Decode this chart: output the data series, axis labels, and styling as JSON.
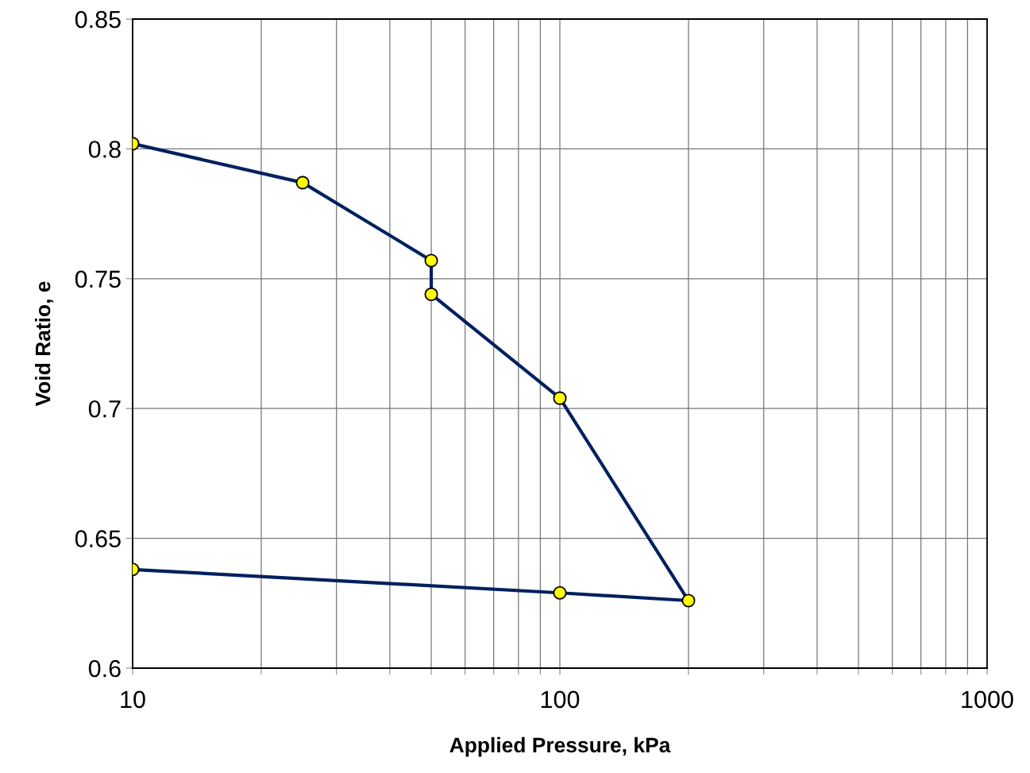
{
  "chart_data": {
    "type": "line",
    "xlabel": "Applied Pressure, kPa",
    "ylabel": "Void Ratio, e",
    "log": "x",
    "series": [
      {
        "color": "#002060",
        "x": [
          10,
          25,
          50,
          50,
          100,
          200,
          100,
          10
        ],
        "values": [
          0.802,
          0.787,
          0.757,
          0.744,
          0.704,
          0.626,
          0.629,
          0.638
        ]
      }
    ],
    "marker": "circle",
    "line_style": "solid",
    "grid": true,
    "xlim": [
      10,
      1000
    ],
    "ylim": [
      0.6,
      0.85
    ],
    "xticks": [
      10,
      {
        "value": 20,
        "label": null
      },
      {
        "value": 30,
        "label": null
      },
      {
        "value": 40,
        "label": null
      },
      {
        "value": 50,
        "label": null
      },
      {
        "value": 60,
        "label": null
      },
      {
        "value": 70,
        "label": null
      },
      {
        "value": 80,
        "label": null
      },
      {
        "value": 90,
        "label": null
      },
      100,
      {
        "value": 200,
        "label": null
      },
      {
        "value": 300,
        "label": null
      },
      {
        "value": 400,
        "label": null
      },
      {
        "value": 500,
        "label": null
      },
      {
        "value": 600,
        "label": null
      },
      {
        "value": 700,
        "label": null
      },
      {
        "value": 800,
        "label": null
      },
      {
        "value": 900,
        "label": null
      },
      1000
    ],
    "yticks": [
      0.6,
      0.65,
      0.7,
      0.75,
      0.8,
      0.85
    ]
  }
}
